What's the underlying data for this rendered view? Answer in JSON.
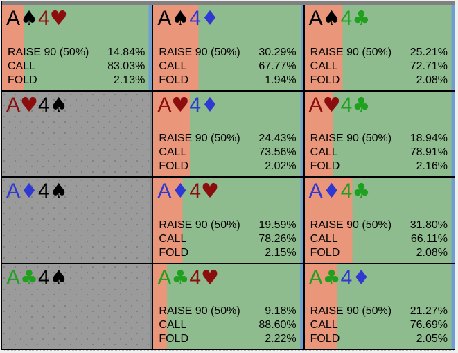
{
  "matrix": {
    "description": "poker combo strategy matrix for A4 hands",
    "action_labels": {
      "raise": "RAISE 90 (50%)",
      "call": "CALL",
      "fold": "FOLD"
    },
    "suit_colors": {
      "spade": "#000000",
      "heart": "#8b0d0d",
      "diamond": "#3038d2",
      "club": "#1fa11f"
    },
    "cells": [
      {
        "card1": {
          "rank": "A",
          "suit": "spade",
          "symbol": "♠"
        },
        "card2": {
          "rank": "4",
          "suit": "heart",
          "symbol": "♥"
        },
        "active": true,
        "raise_pct": 14.84,
        "call_pct": 83.03,
        "fold_pct": 2.13
      },
      {
        "card1": {
          "rank": "A",
          "suit": "spade",
          "symbol": "♠"
        },
        "card2": {
          "rank": "4",
          "suit": "diamond",
          "symbol": "♦"
        },
        "active": true,
        "raise_pct": 30.29,
        "call_pct": 67.77,
        "fold_pct": 1.94
      },
      {
        "card1": {
          "rank": "A",
          "suit": "spade",
          "symbol": "♠"
        },
        "card2": {
          "rank": "4",
          "suit": "club",
          "symbol": "♣"
        },
        "active": true,
        "raise_pct": 25.21,
        "call_pct": 72.71,
        "fold_pct": 2.08
      },
      {
        "card1": {
          "rank": "A",
          "suit": "heart",
          "symbol": "♥"
        },
        "card2": {
          "rank": "4",
          "suit": "spade",
          "symbol": "♠"
        },
        "active": false
      },
      {
        "card1": {
          "rank": "A",
          "suit": "heart",
          "symbol": "♥"
        },
        "card2": {
          "rank": "4",
          "suit": "diamond",
          "symbol": "♦"
        },
        "active": true,
        "raise_pct": 24.43,
        "call_pct": 73.56,
        "fold_pct": 2.02
      },
      {
        "card1": {
          "rank": "A",
          "suit": "heart",
          "symbol": "♥"
        },
        "card2": {
          "rank": "4",
          "suit": "club",
          "symbol": "♣"
        },
        "active": true,
        "raise_pct": 18.94,
        "call_pct": 78.91,
        "fold_pct": 2.16
      },
      {
        "card1": {
          "rank": "A",
          "suit": "diamond",
          "symbol": "♦"
        },
        "card2": {
          "rank": "4",
          "suit": "spade",
          "symbol": "♠"
        },
        "active": false
      },
      {
        "card1": {
          "rank": "A",
          "suit": "diamond",
          "symbol": "♦"
        },
        "card2": {
          "rank": "4",
          "suit": "heart",
          "symbol": "♥"
        },
        "active": true,
        "raise_pct": 19.59,
        "call_pct": 78.26,
        "fold_pct": 2.15
      },
      {
        "card1": {
          "rank": "A",
          "suit": "diamond",
          "symbol": "♦"
        },
        "card2": {
          "rank": "4",
          "suit": "club",
          "symbol": "♣"
        },
        "active": true,
        "raise_pct": 31.8,
        "call_pct": 66.11,
        "fold_pct": 2.08
      },
      {
        "card1": {
          "rank": "A",
          "suit": "club",
          "symbol": "♣"
        },
        "card2": {
          "rank": "4",
          "suit": "spade",
          "symbol": "♠"
        },
        "active": false
      },
      {
        "card1": {
          "rank": "A",
          "suit": "club",
          "symbol": "♣"
        },
        "card2": {
          "rank": "4",
          "suit": "heart",
          "symbol": "♥"
        },
        "active": true,
        "raise_pct": 9.18,
        "call_pct": 88.6,
        "fold_pct": 2.22
      },
      {
        "card1": {
          "rank": "A",
          "suit": "club",
          "symbol": "♣"
        },
        "card2": {
          "rank": "4",
          "suit": "diamond",
          "symbol": "♦"
        },
        "active": true,
        "raise_pct": 21.27,
        "call_pct": 76.69,
        "fold_pct": 2.05
      }
    ]
  },
  "colors": {
    "raise_bg": "#e9967a",
    "call_bg": "#8fbc8f",
    "fold_bg": "#6f9fcf",
    "inactive_bg": "#9b9b9b",
    "inactive_dot": "#7d837d",
    "header_strip": "#808080",
    "frame_border": "#000000",
    "outer_bg": "#f0f0f0"
  }
}
